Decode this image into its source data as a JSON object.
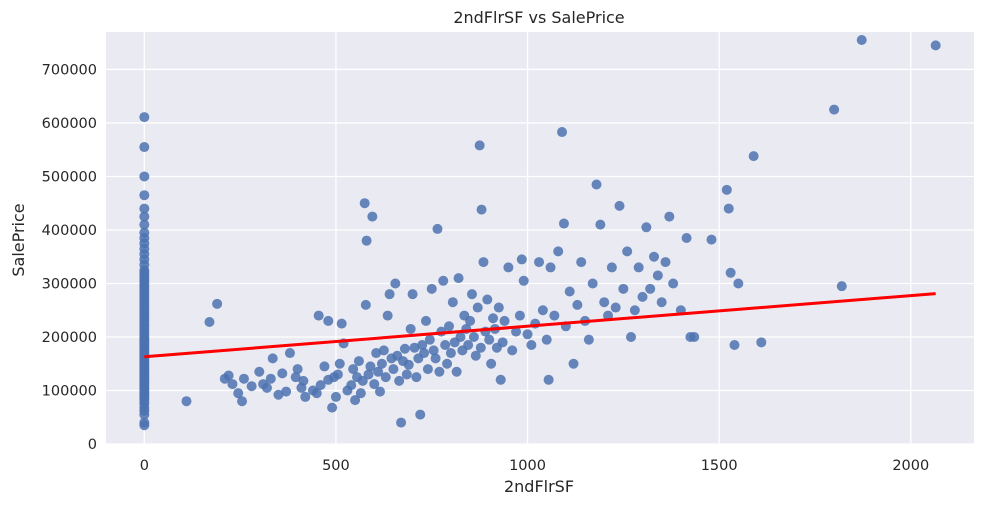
{
  "chart_data": {
    "type": "scatter",
    "title": "2ndFlrSF vs SalePrice",
    "xlabel": "2ndFlrSF",
    "ylabel": "SalePrice",
    "xlim": [
      -100,
      2165
    ],
    "ylim": [
      0,
      770000
    ],
    "xticks": [
      0,
      500,
      1000,
      1500,
      2000
    ],
    "yticks": [
      0,
      100000,
      200000,
      300000,
      400000,
      500000,
      600000,
      700000
    ],
    "grid": true,
    "colors": {
      "background": "#eaeaf2",
      "grid": "#ffffff",
      "points": "#4c72b0",
      "regression": "#ff0000"
    },
    "regression_line": {
      "x": [
        0,
        2065
      ],
      "y": [
        163000,
        281000
      ]
    },
    "points": [
      [
        0,
        35000
      ],
      [
        0,
        40000
      ],
      [
        0,
        55000
      ],
      [
        0,
        62000
      ],
      [
        0,
        68000
      ],
      [
        0,
        75000
      ],
      [
        0,
        80000
      ],
      [
        0,
        85000
      ],
      [
        0,
        88000
      ],
      [
        0,
        92000
      ],
      [
        0,
        96000
      ],
      [
        0,
        100000
      ],
      [
        0,
        104000
      ],
      [
        0,
        108000
      ],
      [
        0,
        112000
      ],
      [
        0,
        116000
      ],
      [
        0,
        120000
      ],
      [
        0,
        124000
      ],
      [
        0,
        128000
      ],
      [
        0,
        132000
      ],
      [
        0,
        136000
      ],
      [
        0,
        140000
      ],
      [
        0,
        144000
      ],
      [
        0,
        148000
      ],
      [
        0,
        152000
      ],
      [
        0,
        156000
      ],
      [
        0,
        160000
      ],
      [
        0,
        164000
      ],
      [
        0,
        168000
      ],
      [
        0,
        172000
      ],
      [
        0,
        176000
      ],
      [
        0,
        180000
      ],
      [
        0,
        184000
      ],
      [
        0,
        188000
      ],
      [
        0,
        192000
      ],
      [
        0,
        196000
      ],
      [
        0,
        200000
      ],
      [
        0,
        205000
      ],
      [
        0,
        210000
      ],
      [
        0,
        215000
      ],
      [
        0,
        220000
      ],
      [
        0,
        225000
      ],
      [
        0,
        230000
      ],
      [
        0,
        235000
      ],
      [
        0,
        240000
      ],
      [
        0,
        245000
      ],
      [
        0,
        250000
      ],
      [
        0,
        255000
      ],
      [
        0,
        260000
      ],
      [
        0,
        265000
      ],
      [
        0,
        270000
      ],
      [
        0,
        275000
      ],
      [
        0,
        280000
      ],
      [
        0,
        285000
      ],
      [
        0,
        290000
      ],
      [
        0,
        295000
      ],
      [
        0,
        300000
      ],
      [
        0,
        305000
      ],
      [
        0,
        310000
      ],
      [
        0,
        315000
      ],
      [
        0,
        320000
      ],
      [
        0,
        325000
      ],
      [
        0,
        335000
      ],
      [
        0,
        345000
      ],
      [
        0,
        355000
      ],
      [
        0,
        365000
      ],
      [
        0,
        375000
      ],
      [
        0,
        385000
      ],
      [
        0,
        395000
      ],
      [
        0,
        410000
      ],
      [
        0,
        425000
      ],
      [
        0,
        440000
      ],
      [
        0,
        465000
      ],
      [
        0,
        500000
      ],
      [
        0,
        555000
      ],
      [
        0,
        611000
      ],
      [
        110,
        80000
      ],
      [
        170,
        228000
      ],
      [
        190,
        262000
      ],
      [
        210,
        122000
      ],
      [
        220,
        128000
      ],
      [
        230,
        112000
      ],
      [
        245,
        95000
      ],
      [
        255,
        80000
      ],
      [
        260,
        122000
      ],
      [
        280,
        108000
      ],
      [
        300,
        135000
      ],
      [
        310,
        112000
      ],
      [
        320,
        105000
      ],
      [
        330,
        122000
      ],
      [
        335,
        160000
      ],
      [
        350,
        92000
      ],
      [
        360,
        132000
      ],
      [
        370,
        98000
      ],
      [
        380,
        170000
      ],
      [
        395,
        125000
      ],
      [
        400,
        140000
      ],
      [
        410,
        105000
      ],
      [
        415,
        118000
      ],
      [
        420,
        88000
      ],
      [
        440,
        100000
      ],
      [
        450,
        95000
      ],
      [
        455,
        240000
      ],
      [
        460,
        110000
      ],
      [
        470,
        145000
      ],
      [
        480,
        230000
      ],
      [
        480,
        120000
      ],
      [
        490,
        68000
      ],
      [
        495,
        125000
      ],
      [
        500,
        88000
      ],
      [
        505,
        130000
      ],
      [
        510,
        150000
      ],
      [
        515,
        225000
      ],
      [
        520,
        188000
      ],
      [
        530,
        100000
      ],
      [
        540,
        110000
      ],
      [
        545,
        140000
      ],
      [
        550,
        82000
      ],
      [
        555,
        125000
      ],
      [
        560,
        155000
      ],
      [
        565,
        95000
      ],
      [
        570,
        118000
      ],
      [
        575,
        450000
      ],
      [
        578,
        260000
      ],
      [
        580,
        380000
      ],
      [
        585,
        130000
      ],
      [
        590,
        145000
      ],
      [
        595,
        425000
      ],
      [
        600,
        112000
      ],
      [
        605,
        170000
      ],
      [
        610,
        135000
      ],
      [
        615,
        98000
      ],
      [
        620,
        150000
      ],
      [
        625,
        175000
      ],
      [
        630,
        125000
      ],
      [
        635,
        240000
      ],
      [
        640,
        280000
      ],
      [
        645,
        160000
      ],
      [
        650,
        140000
      ],
      [
        655,
        300000
      ],
      [
        660,
        165000
      ],
      [
        665,
        118000
      ],
      [
        670,
        40000
      ],
      [
        675,
        155000
      ],
      [
        680,
        178000
      ],
      [
        685,
        130000
      ],
      [
        690,
        148000
      ],
      [
        695,
        215000
      ],
      [
        700,
        280000
      ],
      [
        705,
        180000
      ],
      [
        710,
        125000
      ],
      [
        715,
        160000
      ],
      [
        720,
        55000
      ],
      [
        725,
        185000
      ],
      [
        730,
        170000
      ],
      [
        735,
        230000
      ],
      [
        740,
        140000
      ],
      [
        745,
        195000
      ],
      [
        750,
        290000
      ],
      [
        755,
        175000
      ],
      [
        760,
        160000
      ],
      [
        765,
        402000
      ],
      [
        770,
        135000
      ],
      [
        775,
        210000
      ],
      [
        780,
        305000
      ],
      [
        785,
        185000
      ],
      [
        790,
        150000
      ],
      [
        795,
        220000
      ],
      [
        800,
        170000
      ],
      [
        805,
        265000
      ],
      [
        810,
        190000
      ],
      [
        815,
        135000
      ],
      [
        820,
        310000
      ],
      [
        825,
        200000
      ],
      [
        830,
        175000
      ],
      [
        835,
        240000
      ],
      [
        840,
        215000
      ],
      [
        845,
        185000
      ],
      [
        850,
        230000
      ],
      [
        855,
        280000
      ],
      [
        860,
        200000
      ],
      [
        865,
        165000
      ],
      [
        870,
        255000
      ],
      [
        875,
        558000
      ],
      [
        878,
        180000
      ],
      [
        880,
        438000
      ],
      [
        885,
        340000
      ],
      [
        890,
        210000
      ],
      [
        895,
        270000
      ],
      [
        900,
        195000
      ],
      [
        905,
        150000
      ],
      [
        910,
        235000
      ],
      [
        915,
        215000
      ],
      [
        920,
        180000
      ],
      [
        925,
        255000
      ],
      [
        930,
        120000
      ],
      [
        935,
        190000
      ],
      [
        940,
        230000
      ],
      [
        950,
        330000
      ],
      [
        960,
        175000
      ],
      [
        970,
        210000
      ],
      [
        980,
        240000
      ],
      [
        985,
        345000
      ],
      [
        990,
        305000
      ],
      [
        1000,
        205000
      ],
      [
        1010,
        185000
      ],
      [
        1020,
        225000
      ],
      [
        1030,
        340000
      ],
      [
        1040,
        250000
      ],
      [
        1050,
        195000
      ],
      [
        1055,
        120000
      ],
      [
        1060,
        330000
      ],
      [
        1070,
        240000
      ],
      [
        1080,
        360000
      ],
      [
        1090,
        583000
      ],
      [
        1095,
        412000
      ],
      [
        1100,
        220000
      ],
      [
        1110,
        285000
      ],
      [
        1120,
        150000
      ],
      [
        1130,
        260000
      ],
      [
        1140,
        340000
      ],
      [
        1150,
        230000
      ],
      [
        1160,
        195000
      ],
      [
        1170,
        300000
      ],
      [
        1180,
        485000
      ],
      [
        1190,
        410000
      ],
      [
        1200,
        265000
      ],
      [
        1210,
        240000
      ],
      [
        1220,
        330000
      ],
      [
        1230,
        255000
      ],
      [
        1240,
        445000
      ],
      [
        1250,
        290000
      ],
      [
        1260,
        360000
      ],
      [
        1270,
        200000
      ],
      [
        1280,
        250000
      ],
      [
        1290,
        330000
      ],
      [
        1300,
        275000
      ],
      [
        1310,
        405000
      ],
      [
        1320,
        290000
      ],
      [
        1330,
        350000
      ],
      [
        1340,
        315000
      ],
      [
        1350,
        265000
      ],
      [
        1360,
        340000
      ],
      [
        1370,
        425000
      ],
      [
        1380,
        300000
      ],
      [
        1400,
        250000
      ],
      [
        1415,
        385000
      ],
      [
        1425,
        200000
      ],
      [
        1435,
        200000
      ],
      [
        1480,
        382000
      ],
      [
        1520,
        475000
      ],
      [
        1525,
        440000
      ],
      [
        1530,
        320000
      ],
      [
        1540,
        185000
      ],
      [
        1550,
        300000
      ],
      [
        1590,
        538000
      ],
      [
        1610,
        190000
      ],
      [
        1800,
        625000
      ],
      [
        1820,
        295000
      ],
      [
        1872,
        755000
      ],
      [
        2065,
        745000
      ]
    ]
  }
}
